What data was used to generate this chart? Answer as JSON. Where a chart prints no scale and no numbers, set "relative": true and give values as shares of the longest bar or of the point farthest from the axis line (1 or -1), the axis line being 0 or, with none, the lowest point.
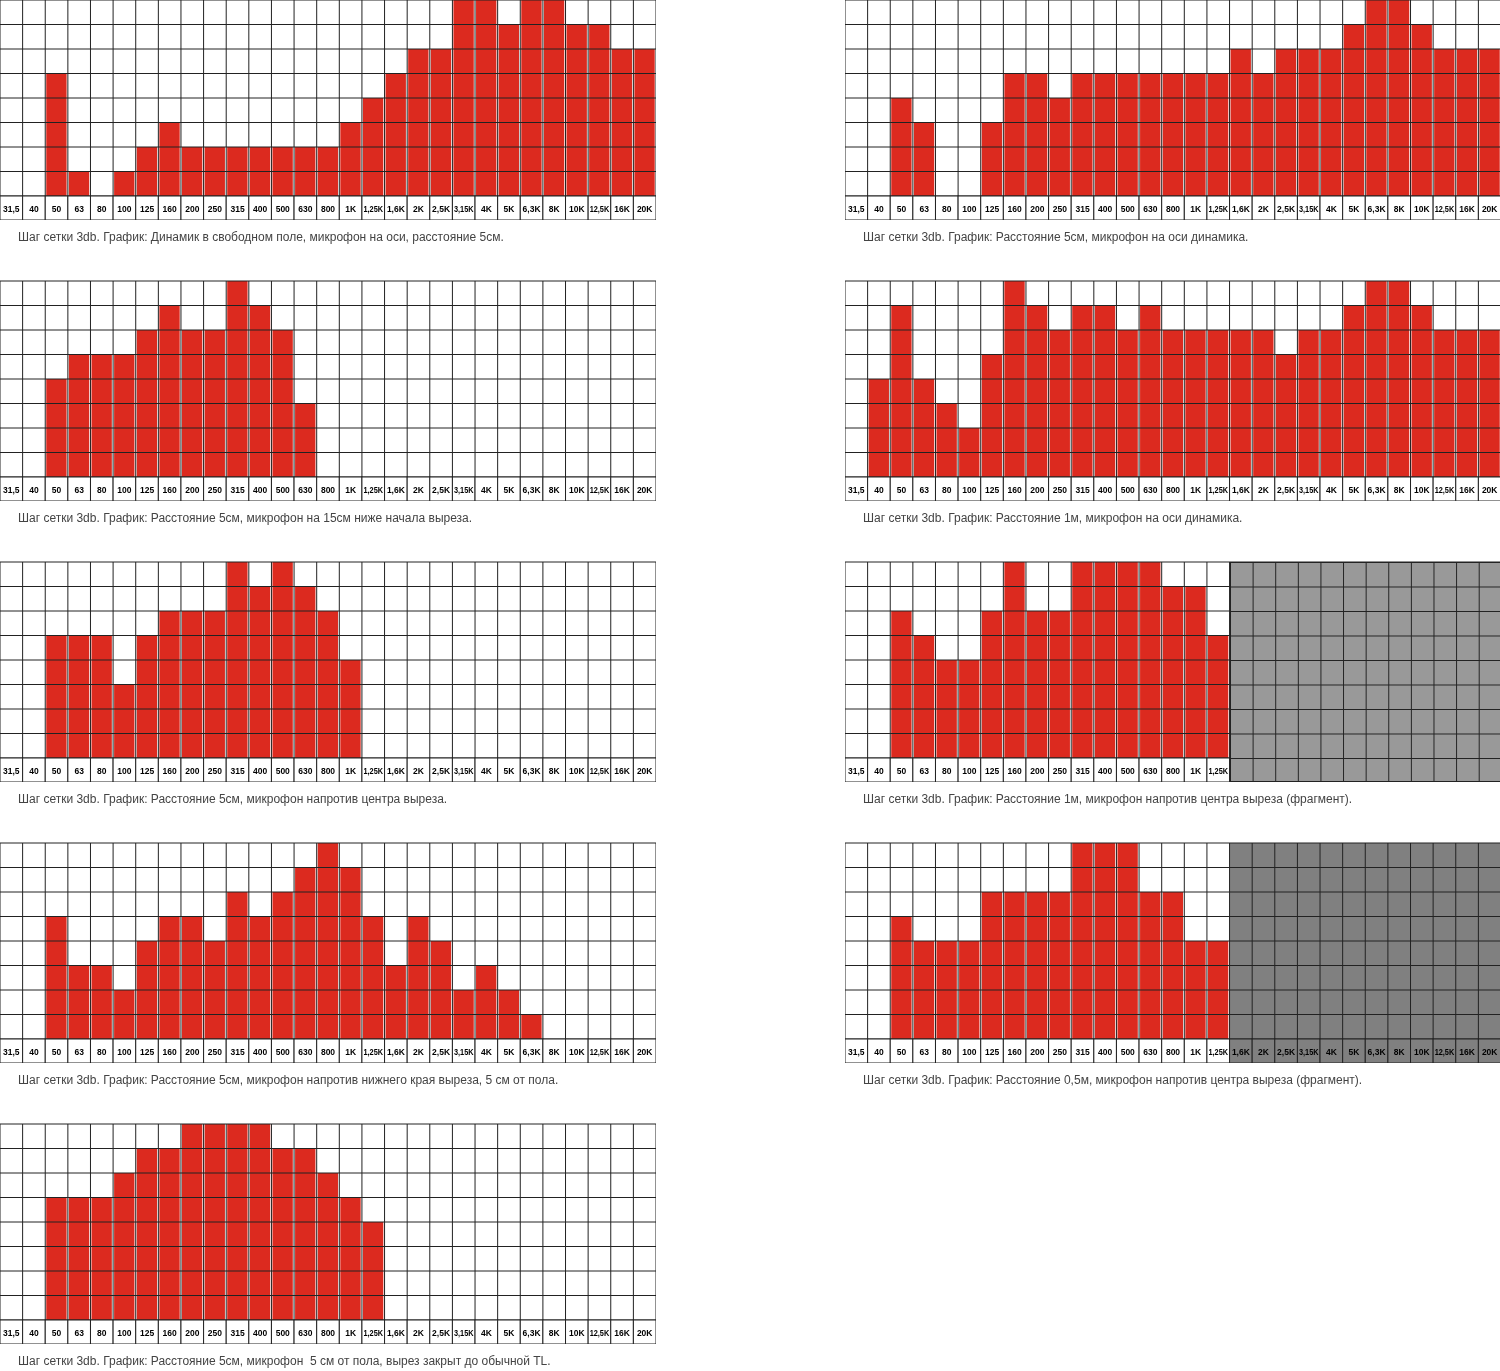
{
  "chart_data": [
    {
      "type": "bar",
      "relative": true,
      "grid": true,
      "color": "#dc2a1f",
      "categories": [
        "31,5",
        "40",
        "50",
        "63",
        "80",
        "100",
        "125",
        "160",
        "200",
        "250",
        "315",
        "400",
        "500",
        "630",
        "800",
        "1K",
        "1,25K",
        "1,6K",
        "2K",
        "2,5K",
        "3,15K",
        "4K",
        "5K",
        "6,3K",
        "8K",
        "10K",
        "12,5K",
        "16K",
        "20K"
      ],
      "values": [
        0,
        0,
        0.625,
        0.125,
        0,
        0.125,
        0.25,
        0.375,
        0.25,
        0.25,
        0.25,
        0.25,
        0.25,
        0.25,
        0.25,
        0.375,
        0.5,
        0.625,
        0.75,
        0.75,
        1,
        1,
        0.875,
        1,
        1,
        0.875,
        0.875,
        0.75,
        0.75
      ],
      "annotations": [
        "Шаг сетки 3db. График: Динамик в свободном поле, микрофон на оси, расстояние 5см."
      ]
    },
    {
      "type": "bar",
      "relative": true,
      "grid": true,
      "color": "#dc2a1f",
      "categories": [
        "31,5",
        "40",
        "50",
        "63",
        "80",
        "100",
        "125",
        "160",
        "200",
        "250",
        "315",
        "400",
        "500",
        "630",
        "800",
        "1K",
        "1,25K",
        "1,6K",
        "2K",
        "2,5K",
        "3,15K",
        "4K",
        "5K",
        "6,3K",
        "8K",
        "10K",
        "12,5K",
        "16K",
        "20K"
      ],
      "values": [
        0,
        0,
        0.5,
        0.375,
        0,
        0,
        0.375,
        0.625,
        0.625,
        0.5,
        0.625,
        0.625,
        0.625,
        0.625,
        0.625,
        0.625,
        0.625,
        0.75,
        0.625,
        0.75,
        0.75,
        0.75,
        0.875,
        1,
        1,
        0.875,
        0.75,
        0.75,
        0.75
      ],
      "annotations": [
        "Шаг сетки 3db. График: Расстояние 5см, микрофон на оси динамика."
      ]
    },
    {
      "type": "bar",
      "relative": true,
      "grid": true,
      "color": "#dc2a1f",
      "categories": [
        "31,5",
        "40",
        "50",
        "63",
        "80",
        "100",
        "125",
        "160",
        "200",
        "250",
        "315",
        "400",
        "500",
        "630",
        "800",
        "1K",
        "1,25K",
        "1,6K",
        "2K",
        "2,5K",
        "3,15K",
        "4K",
        "5K",
        "6,3K",
        "8K",
        "10K",
        "12,5K",
        "16K",
        "20K"
      ],
      "values": [
        0,
        0,
        0.5,
        0.625,
        0.625,
        0.625,
        0.75,
        0.875,
        0.75,
        0.75,
        1,
        0.875,
        0.75,
        0.375,
        0,
        0,
        0,
        0,
        0,
        0,
        0,
        0,
        0,
        0,
        0,
        0,
        0,
        0,
        0
      ],
      "annotations": [
        "Шаг сетки 3db. График: Расстояние 5см, микрофон на 15см ниже начала выреза."
      ]
    },
    {
      "type": "bar",
      "relative": true,
      "grid": true,
      "color": "#dc2a1f",
      "categories": [
        "31,5",
        "40",
        "50",
        "63",
        "80",
        "100",
        "125",
        "160",
        "200",
        "250",
        "315",
        "400",
        "500",
        "630",
        "800",
        "1K",
        "1,25K",
        "1,6K",
        "2K",
        "2,5K",
        "3,15K",
        "4K",
        "5K",
        "6,3K",
        "8K",
        "10K",
        "12,5K",
        "16K",
        "20K"
      ],
      "values": [
        0,
        0.5,
        0.875,
        0.5,
        0.375,
        0.25,
        0.625,
        1,
        0.875,
        0.75,
        0.875,
        0.875,
        0.75,
        0.875,
        0.75,
        0.75,
        0.75,
        0.75,
        0.75,
        0.625,
        0.75,
        0.75,
        0.875,
        1,
        1,
        0.875,
        0.75,
        0.75,
        0.75
      ],
      "annotations": [
        "Шаг сетки 3db. График: Расстояние 1м, микрофон на оси динамика."
      ]
    },
    {
      "type": "bar",
      "relative": true,
      "grid": true,
      "color": "#dc2a1f",
      "categories": [
        "31,5",
        "40",
        "50",
        "63",
        "80",
        "100",
        "125",
        "160",
        "200",
        "250",
        "315",
        "400",
        "500",
        "630",
        "800",
        "1K",
        "1,25K",
        "1,6K",
        "2K",
        "2,5K",
        "3,15K",
        "4K",
        "5K",
        "6,3K",
        "8K",
        "10K",
        "12,5K",
        "16K",
        "20K"
      ],
      "values": [
        0,
        0,
        0.625,
        0.625,
        0.625,
        0.375,
        0.625,
        0.75,
        0.75,
        0.75,
        1,
        0.875,
        1,
        0.875,
        0.75,
        0.5,
        0,
        0,
        0,
        0,
        0,
        0,
        0,
        0,
        0,
        0,
        0,
        0,
        0
      ],
      "annotations": [
        "Шаг сетки 3db. График: Расстояние 5см, микрофон напротив центра выреза."
      ]
    },
    {
      "type": "bar",
      "relative": true,
      "grid": true,
      "color": "#dc2a1f",
      "categories": [
        "31,5",
        "40",
        "50",
        "63",
        "80",
        "100",
        "125",
        "160",
        "200",
        "250",
        "315",
        "400",
        "500",
        "630",
        "800",
        "1K",
        "1,25K",
        null,
        null,
        null,
        null,
        null,
        null,
        null,
        null,
        null,
        null,
        null,
        null
      ],
      "values": [
        0,
        0,
        0.75,
        0.625,
        0.5,
        0.5,
        0.75,
        1,
        0.75,
        0.75,
        1,
        1,
        1,
        1,
        0.875,
        0.875,
        0.625,
        null,
        null,
        null,
        null,
        null,
        null,
        null,
        null,
        null,
        null,
        null,
        null
      ],
      "annotations": [
        "Шаг сетки 3db. График: Расстояние 1м, микрофон напротив центра выреза (фрагмент)."
      ]
    },
    {
      "type": "bar",
      "relative": true,
      "grid": true,
      "color": "#dc2a1f",
      "categories": [
        "31,5",
        "40",
        "50",
        "63",
        "80",
        "100",
        "125",
        "160",
        "200",
        "250",
        "315",
        "400",
        "500",
        "630",
        "800",
        "1K",
        "1,25K",
        "1,6K",
        "2K",
        "2,5K",
        "3,15K",
        "4K",
        "5K",
        "6,3K",
        "8K",
        "10K",
        "12,5K",
        "16K",
        "20K"
      ],
      "values": [
        0,
        0,
        0.625,
        0.375,
        0.375,
        0.25,
        0.5,
        0.625,
        0.625,
        0.5,
        0.75,
        0.625,
        0.75,
        0.875,
        1,
        0.875,
        0.625,
        0.375,
        0.625,
        0.5,
        0.25,
        0.375,
        0.25,
        0.125,
        0,
        0,
        0,
        0,
        0
      ],
      "annotations": [
        "Шаг сетки 3db. График: Расстояние 5см, микрофон напротив нижнего края выреза, 5 см от пола."
      ]
    },
    {
      "type": "bar",
      "relative": true,
      "grid": true,
      "color": "#dc2a1f",
      "categories": [
        "31,5",
        "40",
        "50",
        "63",
        "80",
        "100",
        "125",
        "160",
        "200",
        "250",
        "315",
        "400",
        "500",
        "630",
        "800",
        "1K",
        "1,25K",
        "1,6K",
        "2K",
        "2,5K",
        "3,15K",
        "4K",
        "5K",
        "6,3K",
        "8K",
        "10K",
        "12,5K",
        "16K",
        "20K"
      ],
      "values": [
        0,
        0,
        0.625,
        0.5,
        0.5,
        0.5,
        0.75,
        0.75,
        0.75,
        0.75,
        1,
        1,
        1,
        0.75,
        0.75,
        0.5,
        0.5,
        null,
        null,
        null,
        null,
        null,
        null,
        null,
        null,
        null,
        null,
        null,
        null
      ],
      "bands": [
        {
          "axis": "x",
          "from": "1,6K",
          "to": "20K",
          "color": "#808080"
        }
      ],
      "annotations": [
        "Шаг сетки 3db. График: Расстояние 0,5м, микрофон напротив центра выреза (фрагмент)."
      ]
    },
    {
      "type": "bar",
      "relative": true,
      "grid": true,
      "color": "#dc2a1f",
      "categories": [
        "31,5",
        "40",
        "50",
        "63",
        "80",
        "100",
        "125",
        "160",
        "200",
        "250",
        "315",
        "400",
        "500",
        "630",
        "800",
        "1K",
        "1,25K",
        "1,6K",
        "2K",
        "2,5K",
        "3,15K",
        "4K",
        "5K",
        "6,3K",
        "8K",
        "10K",
        "12,5K",
        "16K",
        "20K"
      ],
      "values": [
        0,
        0,
        0.625,
        0.625,
        0.625,
        0.75,
        0.875,
        0.875,
        1,
        1,
        1,
        1,
        0.875,
        0.875,
        0.75,
        0.625,
        0.5,
        0,
        0,
        0,
        0,
        0,
        0,
        0,
        0,
        0,
        0,
        0,
        0
      ],
      "annotations": [
        "Шаг сетки 3db. График: Расстояние 5см, микрофон  5 см от пола, вырез закрыт до обычной TL."
      ]
    }
  ]
}
